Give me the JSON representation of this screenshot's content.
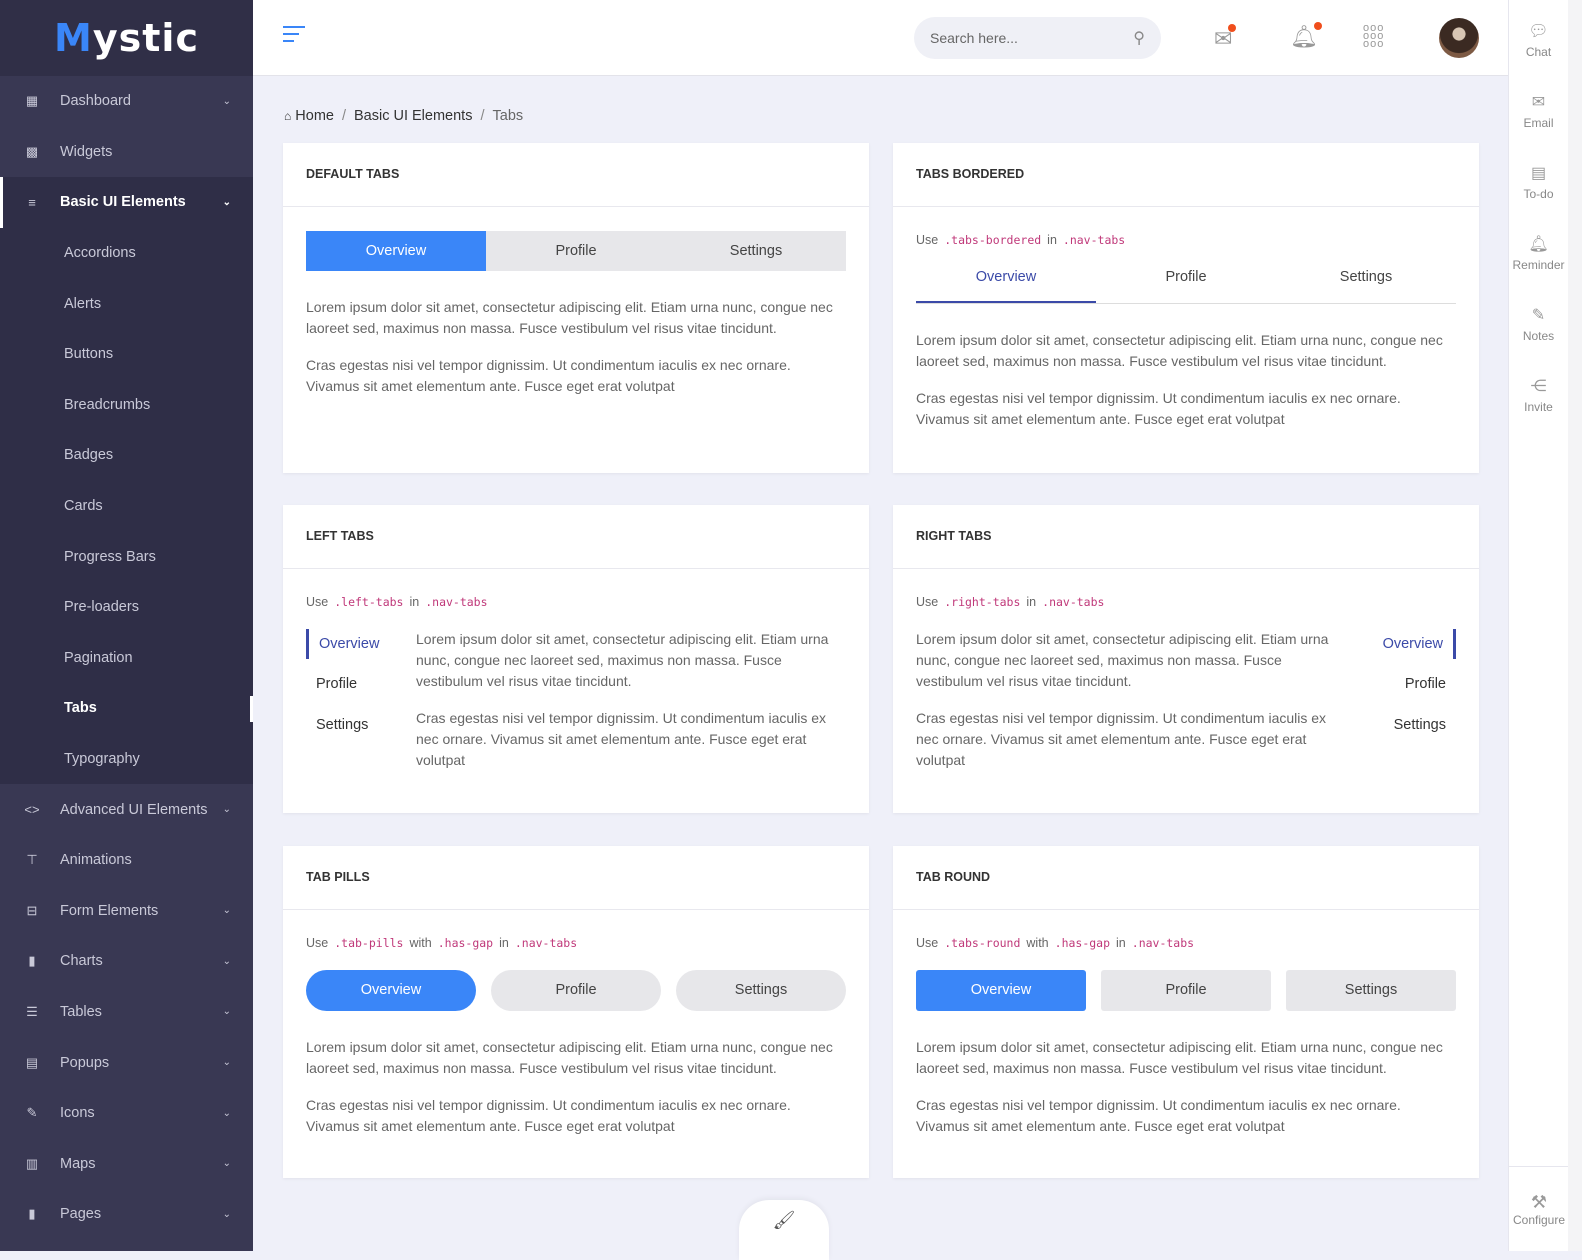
{
  "brand": {
    "logo_text": "Mystic"
  },
  "sidebar": {
    "items": [
      {
        "label": "Dashboard",
        "icon": "dashboard-icon",
        "glyph": "▦",
        "chevron": true
      },
      {
        "label": "Widgets",
        "icon": "widgets-icon",
        "glyph": "▩",
        "chevron": false
      },
      {
        "label": "Basic UI Elements",
        "icon": "filter-list-icon",
        "glyph": "≡",
        "chevron": true,
        "active": true
      }
    ],
    "subitems": [
      "Accordions",
      "Alerts",
      "Buttons",
      "Breadcrumbs",
      "Badges",
      "Cards",
      "Progress Bars",
      "Pre-loaders",
      "Pagination",
      "Tabs",
      "Typography"
    ],
    "current_subitem": "Tabs",
    "more_items": [
      {
        "label": "Advanced UI Elements",
        "icon": "code-icon",
        "glyph": "<>",
        "chevron": true
      },
      {
        "label": "Animations",
        "icon": "paint-roller-icon",
        "glyph": "⊤",
        "chevron": false
      },
      {
        "label": "Form Elements",
        "icon": "form-icon",
        "glyph": "⊟",
        "chevron": true
      },
      {
        "label": "Charts",
        "icon": "bar-chart-icon",
        "glyph": "▮",
        "chevron": true
      },
      {
        "label": "Tables",
        "icon": "tables-icon",
        "glyph": "☰",
        "chevron": true
      },
      {
        "label": "Popups",
        "icon": "message-icon",
        "glyph": "▤",
        "chevron": true
      },
      {
        "label": "Icons",
        "icon": "edit-icon",
        "glyph": "✎",
        "chevron": true
      },
      {
        "label": "Maps",
        "icon": "map-icon",
        "glyph": "▥",
        "chevron": true
      },
      {
        "label": "Pages",
        "icon": "file-icon",
        "glyph": "▮",
        "chevron": true
      }
    ]
  },
  "header": {
    "search_placeholder": "Search here...",
    "notification_dot_color": "#f04e1c"
  },
  "rail": {
    "items": [
      {
        "label": "Chat",
        "glyph": "💬"
      },
      {
        "label": "Email",
        "glyph": "✉"
      },
      {
        "label": "To-do",
        "glyph": "▤"
      },
      {
        "label": "Reminder",
        "glyph": "🔔"
      },
      {
        "label": "Notes",
        "glyph": "✎"
      },
      {
        "label": "Invite",
        "glyph": "⋲"
      }
    ],
    "configure": "Configure"
  },
  "breadcrumb": {
    "home": "Home",
    "section": "Basic UI Elements",
    "current": "Tabs"
  },
  "colors": {
    "accent": "#3a86f8",
    "indigo": "#3b4aa8",
    "sidebar": "#393853",
    "code": "#c0397a"
  },
  "lorem": {
    "p1": "Lorem ipsum dolor sit amet, consectetur adipiscing elit. Etiam urna nunc, congue nec laoreet sed, maximus non massa. Fusce vestibulum vel risus vitae tincidunt.",
    "p2": "Cras egestas nisi vel tempor dignissim. Ut condimentum iaculis ex nec ornare. Vivamus sit amet elementum ante. Fusce eget erat volutpat"
  },
  "tab_labels": [
    "Overview",
    "Profile",
    "Settings"
  ],
  "cards": {
    "default": {
      "title": "DEFAULT TABS"
    },
    "bordered": {
      "title": "TABS BORDERED",
      "use": [
        "Use",
        ".tabs-bordered",
        "in",
        ".nav-tabs"
      ]
    },
    "left": {
      "title": "LEFT TABS",
      "use": [
        "Use",
        ".left-tabs",
        "in",
        ".nav-tabs"
      ]
    },
    "right": {
      "title": "RIGHT TABS",
      "use": [
        "Use",
        ".right-tabs",
        "in",
        ".nav-tabs"
      ]
    },
    "pills": {
      "title": "TAB PILLS",
      "use": [
        "Use",
        ".tab-pills",
        "with",
        ".has-gap",
        "in",
        ".nav-tabs"
      ]
    },
    "round": {
      "title": "TAB ROUND",
      "use": [
        "Use",
        ".tabs-round",
        "with",
        ".has-gap",
        "in",
        ".nav-tabs"
      ]
    }
  }
}
